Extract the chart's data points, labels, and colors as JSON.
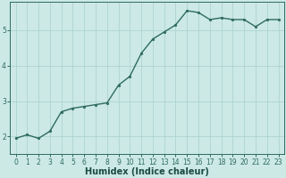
{
  "x": [
    0,
    1,
    2,
    3,
    4,
    5,
    6,
    7,
    8,
    9,
    10,
    11,
    12,
    13,
    14,
    15,
    16,
    17,
    18,
    19,
    20,
    21,
    22,
    23
  ],
  "y": [
    1.95,
    2.05,
    1.95,
    2.15,
    2.7,
    2.8,
    2.85,
    2.9,
    2.95,
    3.45,
    3.7,
    4.35,
    4.75,
    4.95,
    5.15,
    5.55,
    5.5,
    5.3,
    5.35,
    5.3,
    5.3,
    5.1,
    5.3,
    5.3
  ],
  "line_color": "#2e6b5e",
  "marker": ".",
  "marker_size": 4,
  "line_width": 1.0,
  "background_color": "#cce9e6",
  "grid_color": "#add4d0",
  "axis_color": "#2e6b5e",
  "tick_color": "#2e6b5e",
  "xlabel": "Humidex (Indice chaleur)",
  "xlabel_color": "#1a4a40",
  "xlabel_fontsize": 7,
  "yticks": [
    2,
    3,
    4,
    5
  ],
  "ytick_labels": [
    "2",
    "3",
    "4",
    "5"
  ],
  "xtick_labels": [
    "0",
    "1",
    "2",
    "3",
    "4",
    "5",
    "6",
    "7",
    "8",
    "9",
    "10",
    "11",
    "12",
    "13",
    "14",
    "15",
    "16",
    "17",
    "18",
    "19",
    "20",
    "21",
    "22",
    "23"
  ],
  "ylim": [
    1.5,
    5.8
  ],
  "xlim": [
    -0.5,
    23.5
  ],
  "tick_fontsize": 5.5,
  "ylabel_fontsize": 7
}
